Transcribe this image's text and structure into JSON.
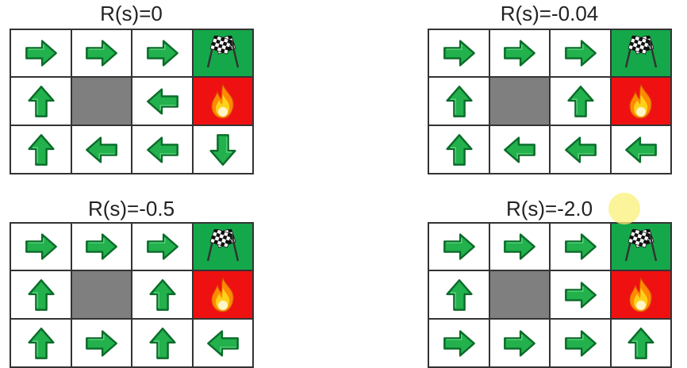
{
  "panels": [
    {
      "title": "R(s)=0",
      "grid": [
        [
          "right",
          "right",
          "right",
          "goal"
        ],
        [
          "up",
          "wall",
          "left",
          "fire"
        ],
        [
          "up",
          "left",
          "left",
          "down"
        ]
      ]
    },
    {
      "title": "R(s)=-0.04",
      "grid": [
        [
          "right",
          "right",
          "right",
          "goal"
        ],
        [
          "up",
          "wall",
          "up",
          "fire"
        ],
        [
          "up",
          "left",
          "left",
          "left"
        ]
      ]
    },
    {
      "title": "R(s)=-0.5",
      "grid": [
        [
          "right",
          "right",
          "right",
          "goal"
        ],
        [
          "up",
          "wall",
          "up",
          "fire"
        ],
        [
          "up",
          "right",
          "up",
          "left"
        ]
      ]
    },
    {
      "title": "R(s)=-2.0",
      "grid": [
        [
          "right",
          "right",
          "right",
          "goal"
        ],
        [
          "up",
          "wall",
          "right",
          "fire"
        ],
        [
          "right",
          "right",
          "right",
          "up"
        ]
      ]
    }
  ],
  "colors": {
    "arrow_fill": "#22b14c",
    "arrow_stroke": "#0b6b2a",
    "goal": "#15a84a",
    "fire": "#ef1111",
    "wall": "#7f7f7f"
  },
  "icons": {
    "goal": "checkered-flags-icon",
    "fire": "fire-icon"
  }
}
